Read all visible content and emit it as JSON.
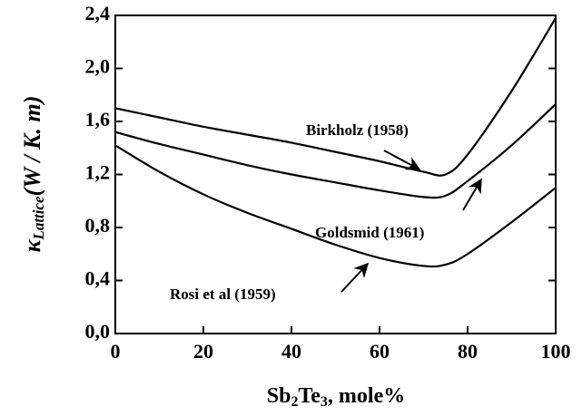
{
  "chart_data": {
    "type": "line",
    "xlabel": [
      "Sb",
      "2",
      "Te",
      "3",
      ", mole%"
    ],
    "ylabel": [
      "κ",
      "Lattice",
      "(W / K. m)"
    ],
    "x": [
      0,
      10,
      20,
      30,
      40,
      50,
      60,
      70,
      75,
      80,
      90,
      100
    ],
    "series": [
      {
        "name": "Birkholz (1958)",
        "color": "#000000",
        "values": [
          1.7,
          1.63,
          1.56,
          1.5,
          1.44,
          1.37,
          1.3,
          1.22,
          1.2,
          1.35,
          1.83,
          2.38
        ]
      },
      {
        "name": "Goldsmid (1961)",
        "color": "#000000",
        "values": [
          1.52,
          1.43,
          1.35,
          1.27,
          1.2,
          1.14,
          1.08,
          1.03,
          1.04,
          1.15,
          1.42,
          1.73
        ]
      },
      {
        "name": "Rosi et al (1959)",
        "color": "#000000",
        "values": [
          1.42,
          1.22,
          1.05,
          0.91,
          0.79,
          0.67,
          0.57,
          0.51,
          0.52,
          0.6,
          0.84,
          1.1
        ]
      }
    ],
    "xlim": [
      0,
      100
    ],
    "xticks": [
      0,
      20,
      40,
      60,
      80,
      100
    ],
    "ylim": [
      0,
      2.4
    ],
    "yticks": [
      {
        "value": 0,
        "label": "0,0"
      },
      {
        "value": 0.4,
        "label": "0,4"
      },
      {
        "value": 0.8,
        "label": "0,8"
      },
      {
        "value": 1.2,
        "label": "1,2"
      },
      {
        "value": 1.6,
        "label": "1,6"
      },
      {
        "value": 2.0,
        "label": "2,0"
      },
      {
        "value": 2.4,
        "label": "2,4"
      }
    ],
    "grid": false
  }
}
